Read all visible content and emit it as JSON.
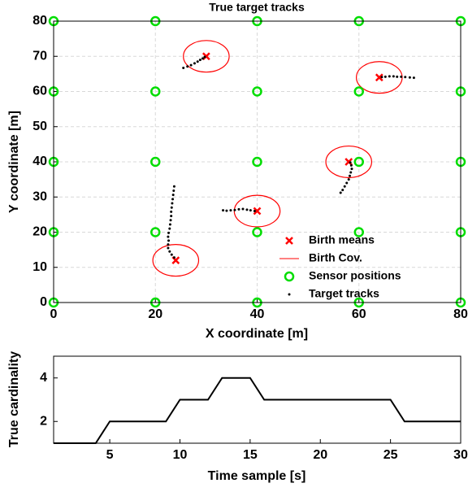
{
  "chart_data": [
    {
      "type": "scatter",
      "title": "True target tracks",
      "xlabel": "X coordinate [m]",
      "ylabel": "Y coordinate [m]",
      "xlim": [
        0,
        80
      ],
      "ylim": [
        0,
        80
      ],
      "xticks": [
        0,
        20,
        40,
        60,
        80
      ],
      "yticks": [
        0,
        10,
        20,
        30,
        40,
        50,
        60,
        70,
        80
      ],
      "grid": true,
      "legend": "lower right",
      "series": [
        {
          "name": "Birth means",
          "color": "#ff0000",
          "marker": "x",
          "x": [
            30,
            64,
            58,
            40,
            24
          ],
          "y": [
            70,
            64,
            40,
            26,
            12
          ]
        },
        {
          "name": "Birth Cov.",
          "color": "#ff0000",
          "marker": "ellipse",
          "radius": 4.5
        },
        {
          "name": "Sensor positions",
          "color": "#00dd00",
          "marker": "o",
          "x": [
            0,
            0,
            0,
            0,
            0,
            20,
            20,
            20,
            20,
            20,
            40,
            40,
            40,
            40,
            40,
            60,
            60,
            60,
            60,
            60,
            80,
            80,
            80,
            80,
            80
          ],
          "y": [
            0,
            20,
            40,
            60,
            80,
            0,
            20,
            40,
            60,
            80,
            0,
            20,
            40,
            60,
            80,
            0,
            20,
            40,
            60,
            80,
            0,
            20,
            40,
            60,
            80
          ]
        },
        {
          "name": "Target tracks",
          "color": "#000000",
          "marker": "dot",
          "x": [
            25.5,
            26.3,
            27,
            27.7,
            28.3,
            28.8,
            29.3,
            29.7,
            64.5,
            65.2,
            66,
            66.8,
            67.5,
            68.3,
            69.1,
            70,
            70.8,
            58.3,
            58.5,
            58.6,
            58.4,
            58.2,
            58,
            57.6,
            57.2,
            56.8,
            56.4,
            39.5,
            38.7,
            38,
            37.2,
            36.4,
            35.6,
            34.8,
            34,
            33.3,
            23.7,
            23.2,
            22.8,
            22.5,
            22.5,
            22.6,
            22.5,
            22.6,
            22.8,
            22.9,
            23,
            23.1,
            23.1,
            23.2,
            23.3,
            23.4,
            23.5,
            23.6,
            23.7
          ],
          "y": [
            66.7,
            67.1,
            67.5,
            68,
            68.5,
            69,
            69.4,
            69.8,
            64.1,
            64.2,
            64.3,
            64.3,
            64.2,
            64.2,
            64.1,
            64,
            63.9,
            39.8,
            39,
            38,
            37,
            36,
            35,
            34,
            33,
            32,
            31.2,
            26,
            26.2,
            26.4,
            26.6,
            26.5,
            26.3,
            26.2,
            26.1,
            26.2,
            12.8,
            13.6,
            14.5,
            15.5,
            16.5,
            17.6,
            18.7,
            19.8,
            21,
            22.2,
            23.4,
            24.6,
            25.8,
            27,
            28.2,
            29.4,
            30.6,
            31.8,
            33
          ]
        }
      ]
    },
    {
      "type": "line",
      "xlabel": "Time sample [s]",
      "ylabel": "True cardinality",
      "xlim": [
        1,
        30
      ],
      "ylim": [
        1,
        5
      ],
      "xticks": [
        5,
        10,
        15,
        20,
        25,
        30
      ],
      "yticks": [
        2,
        4
      ],
      "grid": false,
      "series": [
        {
          "color": "#000000",
          "x": [
            1,
            2,
            3,
            4,
            5,
            6,
            7,
            8,
            9,
            10,
            11,
            12,
            13,
            14,
            15,
            16,
            17,
            18,
            19,
            20,
            21,
            22,
            23,
            24,
            25,
            26,
            27,
            28,
            29,
            30
          ],
          "values": [
            1,
            1,
            1,
            1,
            2,
            2,
            2,
            2,
            2,
            3,
            3,
            3,
            4,
            4,
            4,
            3,
            3,
            3,
            3,
            3,
            3,
            3,
            3,
            3,
            3,
            2,
            2,
            2,
            2,
            2
          ]
        }
      ]
    }
  ]
}
